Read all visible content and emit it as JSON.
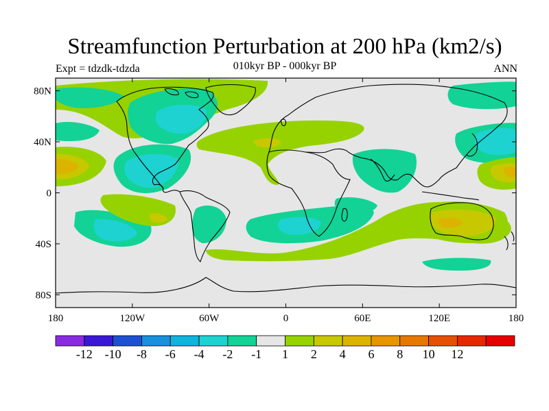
{
  "title": "Streamfunction Perturbation at 200 hPa (km2/s)",
  "left_label": "Expt = tdzdk-tdzda",
  "center_label": "010kyr BP - 000kyr BP",
  "right_label": "ANN",
  "colors": {
    "background": "#e6e6e6",
    "land_outline": "#000000"
  },
  "map_data": {
    "type": "filled-contour-map",
    "projection": "cylindrical-equidistant",
    "lon_range": [
      -180,
      180
    ],
    "lat_range": [
      -90,
      90
    ],
    "x_ticks": [
      {
        "lon": -180,
        "label": "180"
      },
      {
        "lon": -120,
        "label": "120W"
      },
      {
        "lon": -60,
        "label": "60W"
      },
      {
        "lon": 0,
        "label": "0"
      },
      {
        "lon": 60,
        "label": "60E"
      },
      {
        "lon": 120,
        "label": "120E"
      },
      {
        "lon": 180,
        "label": "180"
      }
    ],
    "y_ticks": [
      {
        "lat": 80,
        "label": "80N"
      },
      {
        "lat": 40,
        "label": "40N"
      },
      {
        "lat": 0,
        "label": "0"
      },
      {
        "lat": -40,
        "label": "40S"
      },
      {
        "lat": -80,
        "label": "80S"
      }
    ],
    "colorbar": {
      "colors": [
        "#8a2be2",
        "#3a19d6",
        "#1e50d2",
        "#1890dc",
        "#10b4dc",
        "#1ed2d2",
        "#12d296",
        "#e6e6e6",
        "#96d200",
        "#c8c800",
        "#dcb400",
        "#e69600",
        "#e67800",
        "#e65000",
        "#e62800",
        "#e60000"
      ],
      "labels": [
        "-12",
        "-10",
        "-8",
        "-6",
        "-4",
        "-2",
        "-1",
        "1",
        "2",
        "4",
        "6",
        "8",
        "10",
        "12"
      ]
    }
  }
}
